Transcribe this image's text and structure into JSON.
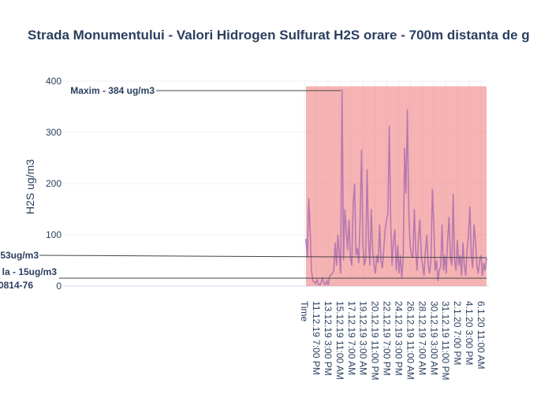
{
  "chart_data": {
    "type": "line",
    "title": "Strada Monumentului - Valori Hidrogen Sulfurat H2S orare - 700m distanta de g",
    "xlabel": "",
    "ylabel": "H2S ug/m3",
    "ylim": [
      0,
      400
    ],
    "yticks": [
      0,
      100,
      200,
      300,
      400
    ],
    "x_step_hours": 5,
    "xticks": [
      {
        "index": 0,
        "label": "Time"
      },
      {
        "index": 44,
        "label": "11.12.19 7:00 PM"
      },
      {
        "index": 88,
        "label": "13.12.19 3:00 PM"
      },
      {
        "index": 132,
        "label": "15.12.19 11:00 AM"
      },
      {
        "index": 176,
        "label": "17.12.19 7:00 AM"
      },
      {
        "index": 220,
        "label": "19.12.19 3:00 AM"
      },
      {
        "index": 264,
        "label": "20.12.19 11:00 PM"
      },
      {
        "index": 308,
        "label": "22.12.19 7:00 PM"
      },
      {
        "index": 352,
        "label": "24.12.19 3:00 PM"
      },
      {
        "index": 396,
        "label": "26.12.19 11:00 AM"
      },
      {
        "index": 440,
        "label": "28.12.19 7:00 AM"
      },
      {
        "index": 484,
        "label": "30.12.19 3:00 AM"
      },
      {
        "index": 528,
        "label": "31.12.19 11:00 PM"
      },
      {
        "index": 572,
        "label": "2.1.20 7:00 PM"
      },
      {
        "index": 616,
        "label": "4.1.20 3:00 PM"
      },
      {
        "index": 660,
        "label": "6.1.20 11:00 AM"
      }
    ],
    "xlim": [
      -5,
      650
    ],
    "series": [
      {
        "name": "H2S",
        "color": "#636efa",
        "values": [
          92,
          55,
          172,
          110,
          30,
          10,
          8,
          5,
          12,
          3,
          2,
          8,
          15,
          5,
          3,
          10,
          2,
          18,
          22,
          25,
          30,
          85,
          40,
          100,
          60,
          25,
          384,
          50,
          150,
          110,
          70,
          130,
          55,
          40,
          160,
          200,
          60,
          75,
          45,
          130,
          266,
          80,
          40,
          55,
          228,
          90,
          40,
          150,
          70,
          40,
          25,
          60,
          45,
          120,
          50,
          35,
          70,
          110,
          130,
          140,
          313,
          120,
          40,
          90,
          110,
          30,
          80,
          25,
          60,
          15,
          55,
          270,
          180,
          345,
          140,
          80,
          60,
          55,
          150,
          70,
          30,
          95,
          130,
          60,
          40,
          20,
          70,
          100,
          40,
          25,
          50,
          190,
          120,
          30,
          50,
          10,
          30,
          40,
          120,
          30,
          60,
          25,
          90,
          135,
          55,
          40,
          180,
          50,
          30,
          90,
          40,
          60,
          20,
          85,
          40,
          20,
          70,
          100,
          155,
          60,
          35,
          120,
          90,
          40,
          25,
          50,
          60,
          20,
          45,
          30,
          55
        ]
      }
    ],
    "shape": {
      "type": "rect",
      "color": "#f08080",
      "opacity": 0.6,
      "y0": 0,
      "y1": 390
    },
    "annotations": [
      {
        "text": "Maxim  - 384 ug/m3",
        "value": 384
      },
      {
        "text": "53ug/m3",
        "value": 53
      },
      {
        "text": "la - 15ug/m3",
        "value": 15
      },
      {
        "text": "0814-76",
        "value": 15
      }
    ]
  }
}
